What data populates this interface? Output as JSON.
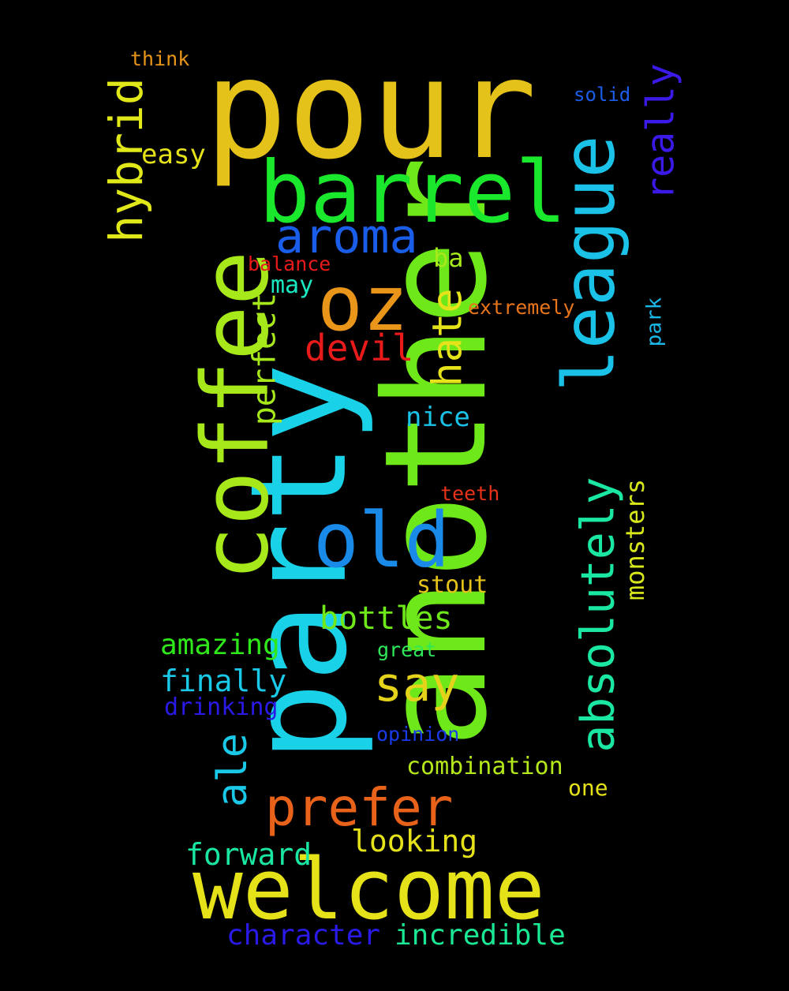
{
  "words": [
    {
      "text": "pour",
      "color": "#e5c21a"
    },
    {
      "text": "another",
      "color": "#6fe81a"
    },
    {
      "text": "party",
      "color": "#1ad2e8"
    },
    {
      "text": "coffee",
      "color": "#a6e81a"
    },
    {
      "text": "barrel",
      "color": "#1ae82c"
    },
    {
      "text": "league",
      "color": "#1ac2e8"
    },
    {
      "text": "welcome",
      "color": "#e5e21a"
    },
    {
      "text": "oz",
      "color": "#e8951a"
    },
    {
      "text": "aroma",
      "color": "#1a5de8"
    },
    {
      "text": "old",
      "color": "#1a8ae8"
    },
    {
      "text": "hybrid",
      "color": "#e0e81a"
    },
    {
      "text": "absolutely",
      "color": "#1ae8a2"
    },
    {
      "text": "prefer",
      "color": "#e8621a"
    },
    {
      "text": "really",
      "color": "#3a1ae8"
    },
    {
      "text": "devil",
      "color": "#e81a1a"
    },
    {
      "text": "hate",
      "color": "#e5e21a"
    },
    {
      "text": "say",
      "color": "#e5d21a"
    },
    {
      "text": "perfect",
      "color": "#a6e81a"
    },
    {
      "text": "ale",
      "color": "#1ac8e8"
    },
    {
      "text": "bottles",
      "color": "#6fe81a"
    },
    {
      "text": "monsters",
      "color": "#d8e81a"
    },
    {
      "text": "looking",
      "color": "#e5e21a"
    },
    {
      "text": "forward",
      "color": "#1ae8a2"
    },
    {
      "text": "incredible",
      "color": "#1ae895"
    },
    {
      "text": "character",
      "color": "#2a1ae8"
    },
    {
      "text": "finally",
      "color": "#1ac8e8"
    },
    {
      "text": "amazing",
      "color": "#2ee81a"
    },
    {
      "text": "nice",
      "color": "#1ac2e8"
    },
    {
      "text": "easy",
      "color": "#e5e21a"
    },
    {
      "text": "combination",
      "color": "#b5e81a"
    },
    {
      "text": "stout",
      "color": "#e5c21a"
    },
    {
      "text": "ba",
      "color": "#a6e81a"
    },
    {
      "text": "may",
      "color": "#1ae8c2"
    },
    {
      "text": "park",
      "color": "#1ab8e8"
    },
    {
      "text": "drinking",
      "color": "#2a1ae8"
    },
    {
      "text": "extremely",
      "color": "#e8751a"
    },
    {
      "text": "balance",
      "color": "#e81a1a"
    },
    {
      "text": "teeth",
      "color": "#e8321a"
    },
    {
      "text": "great",
      "color": "#2ee85a"
    },
    {
      "text": "opinion",
      "color": "#1a3ae8"
    },
    {
      "text": "one",
      "color": "#e5e21a"
    },
    {
      "text": "solid",
      "color": "#1a5de8"
    },
    {
      "text": "think",
      "color": "#e8951a"
    }
  ]
}
